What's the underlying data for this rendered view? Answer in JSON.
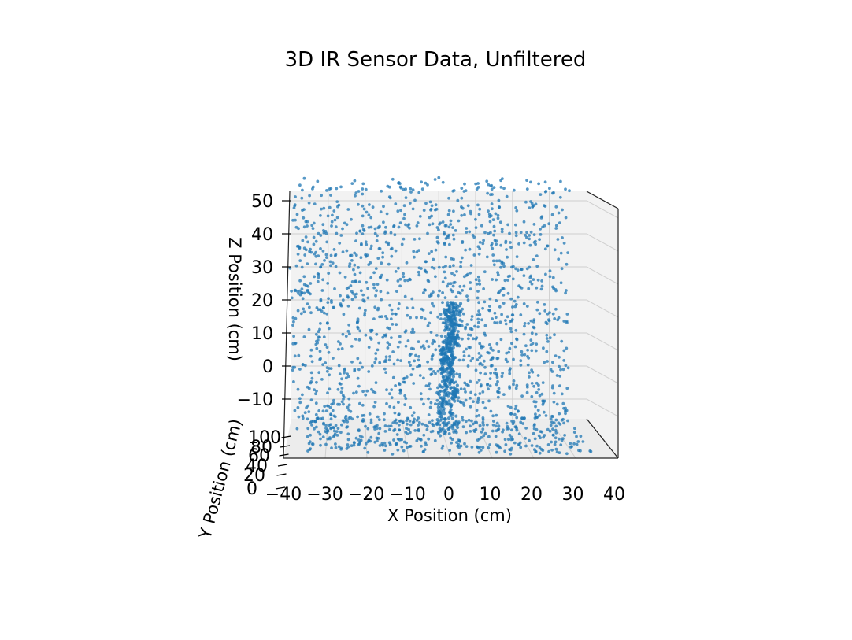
{
  "chart_data": {
    "type": "scatter",
    "projection": "3d",
    "title": "3D IR Sensor Data, Unfiltered",
    "xlabel": "X Position (cm)",
    "ylabel": "Y Position (cm)",
    "zlabel": "Z Position (cm)",
    "x_ticks": [
      "−40",
      "−30",
      "−20",
      "−10",
      "0",
      "10",
      "20",
      "30",
      "40"
    ],
    "y_ticks": [
      "0",
      "20",
      "40",
      "60",
      "80",
      "100"
    ],
    "z_ticks": [
      "−10",
      "0",
      "10",
      "20",
      "30",
      "40",
      "50"
    ],
    "xlim": [
      -40,
      40
    ],
    "ylim": [
      0,
      100
    ],
    "zlim": [
      -20,
      55
    ],
    "grid": true,
    "marker_color": "#1f77b4",
    "point_clouds": [
      {
        "shape": "background_wall",
        "x_range": [
          -40,
          35
        ],
        "z_range": [
          -20,
          55
        ],
        "y": 100,
        "approx_points": 1500
      },
      {
        "shape": "floor",
        "x_range": [
          -35,
          35
        ],
        "z_range": [
          -22,
          -15
        ],
        "y_range": [
          0,
          100
        ],
        "approx_points": 350
      },
      {
        "shape": "vertical_object",
        "x_range": [
          -3,
          3
        ],
        "z_range": [
          -15,
          22
        ],
        "y": 30,
        "approx_points": 420
      }
    ]
  }
}
